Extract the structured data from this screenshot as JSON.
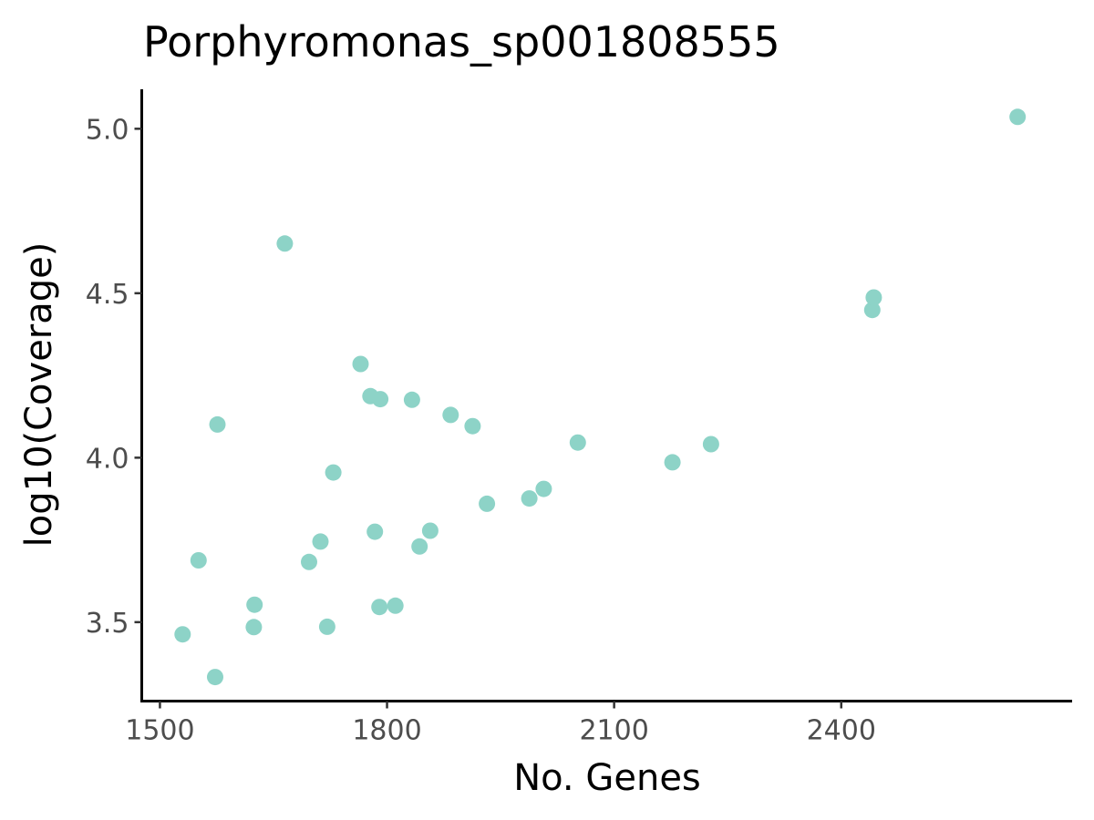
{
  "chart_data": {
    "type": "scatter",
    "title": "Porphyromonas_sp001808555",
    "xlabel": "No. Genes",
    "ylabel": "log10(Coverage)",
    "xlim": [
      1476,
      2705
    ],
    "ylim": [
      3.26,
      5.12
    ],
    "xticks": [
      1500,
      1800,
      2100,
      2400
    ],
    "xtick_labels": [
      "1500",
      "1800",
      "2100",
      "2400"
    ],
    "yticks": [
      3.5,
      4.0,
      4.5,
      5.0
    ],
    "ytick_labels": [
      "3.5",
      "4.0",
      "4.5",
      "5.0"
    ],
    "grid": false,
    "legend": "none",
    "point_color": "#8dd3c7",
    "x": [
      1530,
      1551,
      1573,
      1576,
      1624,
      1625,
      1665,
      1697,
      1712,
      1721,
      1729,
      1765,
      1778,
      1784,
      1790,
      1791,
      1811,
      1833,
      1843,
      1857,
      1884,
      1913,
      1932,
      1988,
      2007,
      2052,
      2177,
      2228,
      2441,
      2443,
      2633
    ],
    "y": [
      3.463,
      3.688,
      3.333,
      4.101,
      3.485,
      3.553,
      4.651,
      3.683,
      3.745,
      3.486,
      3.955,
      4.285,
      4.187,
      3.775,
      3.546,
      4.178,
      3.55,
      4.176,
      3.73,
      3.778,
      4.13,
      4.096,
      3.86,
      3.876,
      3.905,
      4.046,
      3.986,
      4.041,
      4.449,
      4.487,
      5.036
    ]
  }
}
